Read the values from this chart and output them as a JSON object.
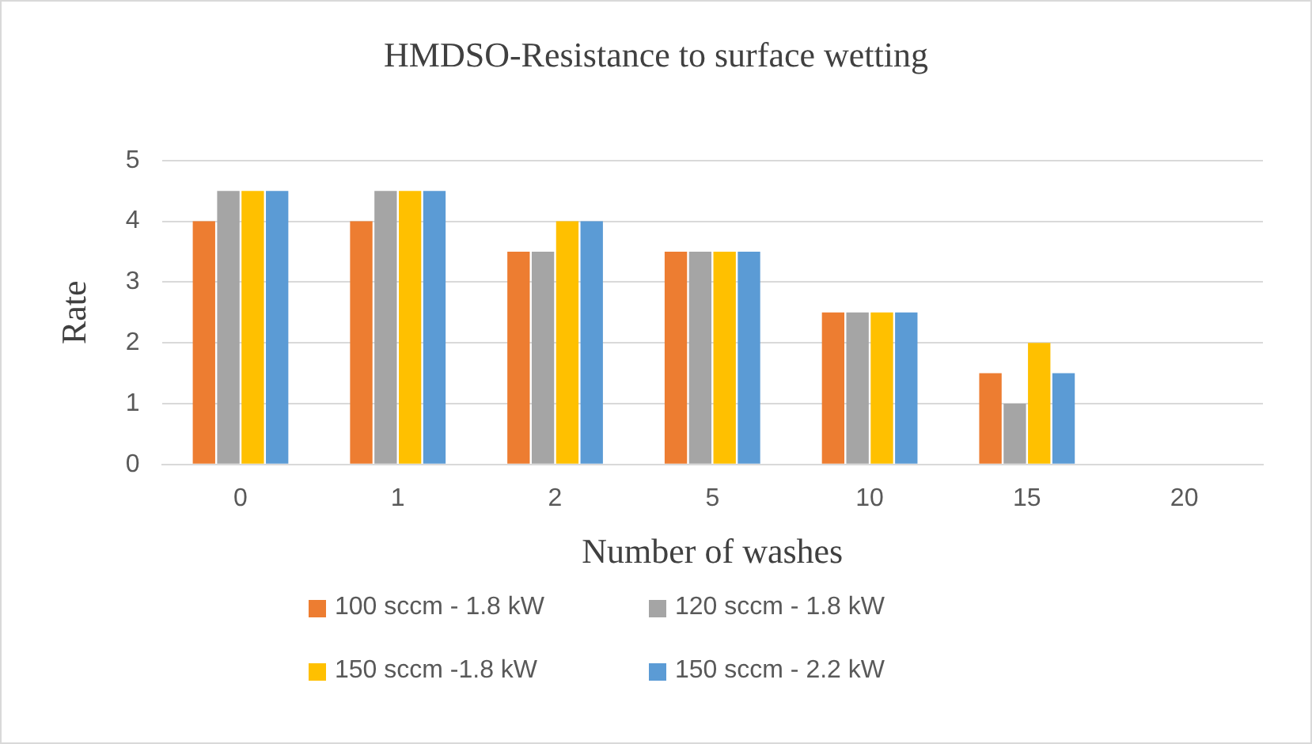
{
  "chart_data": {
    "type": "bar",
    "title": "HMDSO-Resistance to surface wetting",
    "xlabel": "Number of washes",
    "ylabel": "Rate",
    "categories": [
      "0",
      "1",
      "2",
      "5",
      "10",
      "15",
      "20"
    ],
    "series": [
      {
        "name": "100 sccm - 1.8 kW",
        "color": "#ed7d31",
        "values": [
          4,
          4,
          3.5,
          3.5,
          2.5,
          1.5,
          0
        ]
      },
      {
        "name": "120 sccm - 1.8 kW",
        "color": "#a5a5a5",
        "values": [
          4.5,
          4.5,
          3.5,
          3.5,
          2.5,
          1,
          0
        ]
      },
      {
        "name": "150 sccm -1.8 kW",
        "color": "#ffc000",
        "values": [
          4.5,
          4.5,
          4,
          3.5,
          2.5,
          2,
          0
        ]
      },
      {
        "name": "150 sccm - 2.2 kW",
        "color": "#5b9bd5",
        "values": [
          4.5,
          4.5,
          4,
          3.5,
          2.5,
          1.5,
          0
        ]
      }
    ],
    "ylim": [
      0,
      5
    ],
    "yticks": [
      0,
      1,
      2,
      3,
      4,
      5
    ],
    "grid": "y",
    "legend": "bottom"
  }
}
